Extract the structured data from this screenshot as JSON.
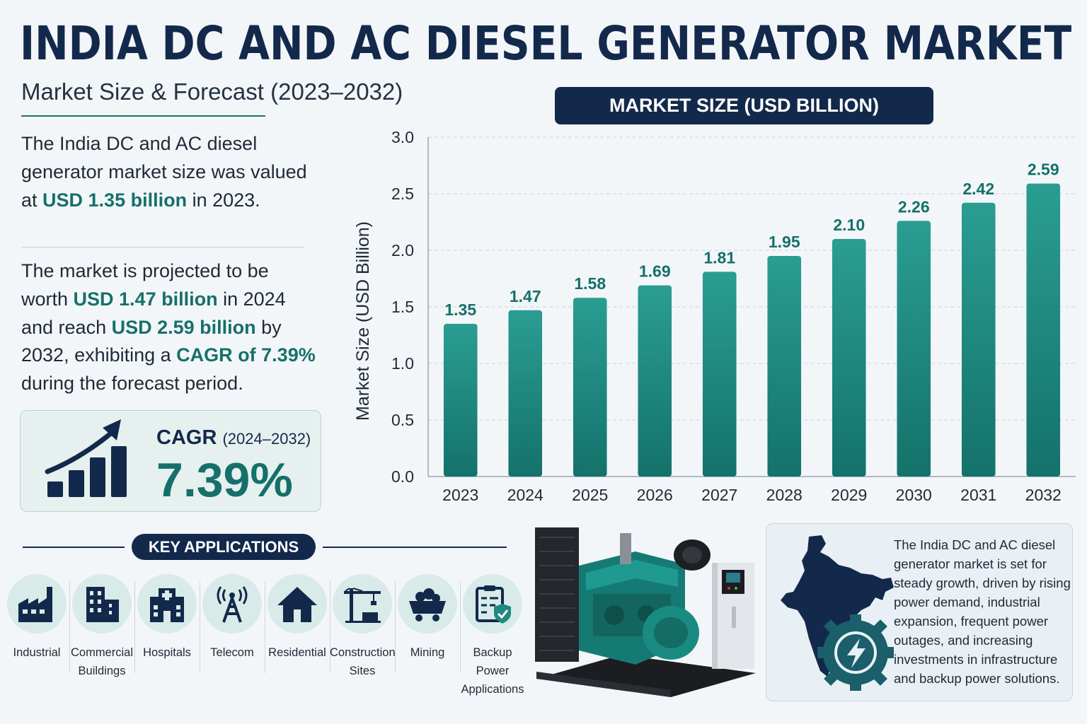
{
  "header": {
    "title": "INDIA DC AND AC DIESEL GENERATOR MARKET",
    "subtitle": "Market Size & Forecast (2023–2032)"
  },
  "summary": {
    "p1_a": "The India DC and AC diesel generator market size was valued at ",
    "p1_b": "USD 1.35 billion",
    "p1_c": " in 2023.",
    "p2_a": "The market is projected to be worth ",
    "p2_b": "USD 1.47 billion",
    "p2_c": " in 2024 and reach ",
    "p2_d": "USD 2.59 billion",
    "p2_e": " by 2032, exhibiting a ",
    "p2_f": "CAGR of 7.39%",
    "p2_g": " during the forecast period."
  },
  "cagr": {
    "label": "CAGR",
    "period": "(2024–2032)",
    "value": "7.39%"
  },
  "chart_data": {
    "type": "bar",
    "title": "MARKET SIZE (USD BILLION)",
    "xlabel": "",
    "ylabel": "Market Size (USD Billion)",
    "categories": [
      "2023",
      "2024",
      "2025",
      "2026",
      "2027",
      "2028",
      "2029",
      "2030",
      "2031",
      "2032"
    ],
    "values": [
      1.35,
      1.47,
      1.58,
      1.69,
      1.81,
      1.95,
      2.1,
      2.26,
      2.42,
      2.59
    ],
    "value_labels": [
      "1.35",
      "1.47",
      "1.58",
      "1.69",
      "1.81",
      "1.95",
      "2.10",
      "2.26",
      "2.42",
      "2.59"
    ],
    "ylim": [
      0,
      3.0
    ],
    "yticks": [
      "0.0",
      "0.5",
      "1.0",
      "1.5",
      "2.0",
      "2.5",
      "3.0"
    ],
    "grid": true,
    "bar_color": "#1f8a80"
  },
  "applications": {
    "header": "KEY APPLICATIONS",
    "items": [
      {
        "label": "Industrial",
        "icon": "factory-icon"
      },
      {
        "label": "Commercial Buildings",
        "icon": "building-icon"
      },
      {
        "label": "Hospitals",
        "icon": "hospital-icon"
      },
      {
        "label": "Telecom",
        "icon": "tower-icon"
      },
      {
        "label": "Residential",
        "icon": "house-icon"
      },
      {
        "label": "Construction Sites",
        "icon": "crane-icon"
      },
      {
        "label": "Mining",
        "icon": "mining-cart-icon"
      },
      {
        "label": "Backup Power Applications",
        "icon": "clipboard-shield-icon"
      }
    ]
  },
  "info": {
    "text": "The India DC and AC diesel generator market is set for steady growth, driven by rising power demand, industrial expansion, frequent power outages, and increasing investments in infrastructure and backup power solutions."
  },
  "colors": {
    "navy": "#13294b",
    "teal": "#16706a",
    "bar": "#1f8a80"
  }
}
